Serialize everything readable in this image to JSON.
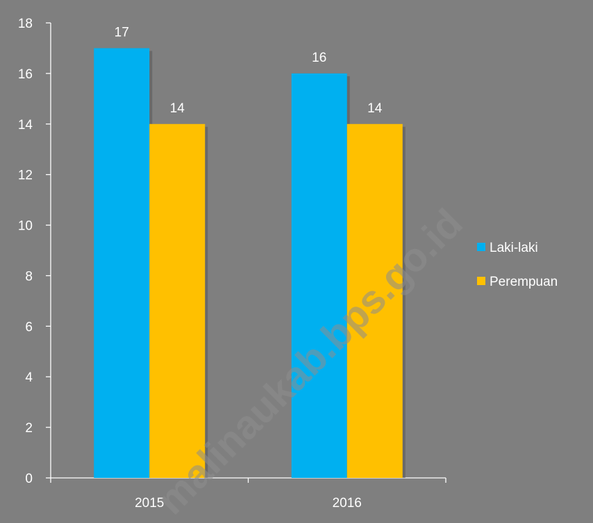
{
  "chart_data": {
    "type": "bar",
    "categories": [
      "2015",
      "2016"
    ],
    "series": [
      {
        "name": "Laki-laki",
        "values": [
          17,
          16
        ],
        "color": "#00b0f0"
      },
      {
        "name": "Perempuan",
        "values": [
          14,
          14
        ],
        "color": "#ffc000"
      }
    ],
    "title": "",
    "xlabel": "",
    "ylabel": "",
    "ylim": [
      0,
      18
    ],
    "yticks": [
      "0",
      "2",
      "4",
      "6",
      "8",
      "10",
      "12",
      "14",
      "16",
      "18"
    ],
    "grid": false,
    "legend_position": "right",
    "data_labels": true,
    "background_color": "#7f7f7f",
    "axis_color": "#ffffff",
    "text_color": "#ffffff"
  },
  "watermark": "malinaukab.bps.go.id"
}
